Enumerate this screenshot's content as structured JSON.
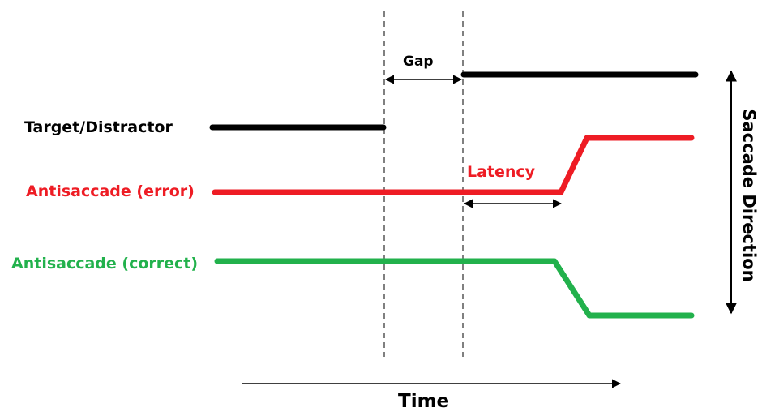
{
  "labels": {
    "target": "Target/Distractor",
    "error": "Antisaccade (error)",
    "correct": "Antisaccade (correct)",
    "gap": "Gap",
    "latency": "Latency",
    "time": "Time",
    "direction": "Saccade Direction"
  },
  "colors": {
    "target": "#000000",
    "error": "#ee1c24",
    "correct": "#22b14c",
    "guides": "#808080"
  }
}
